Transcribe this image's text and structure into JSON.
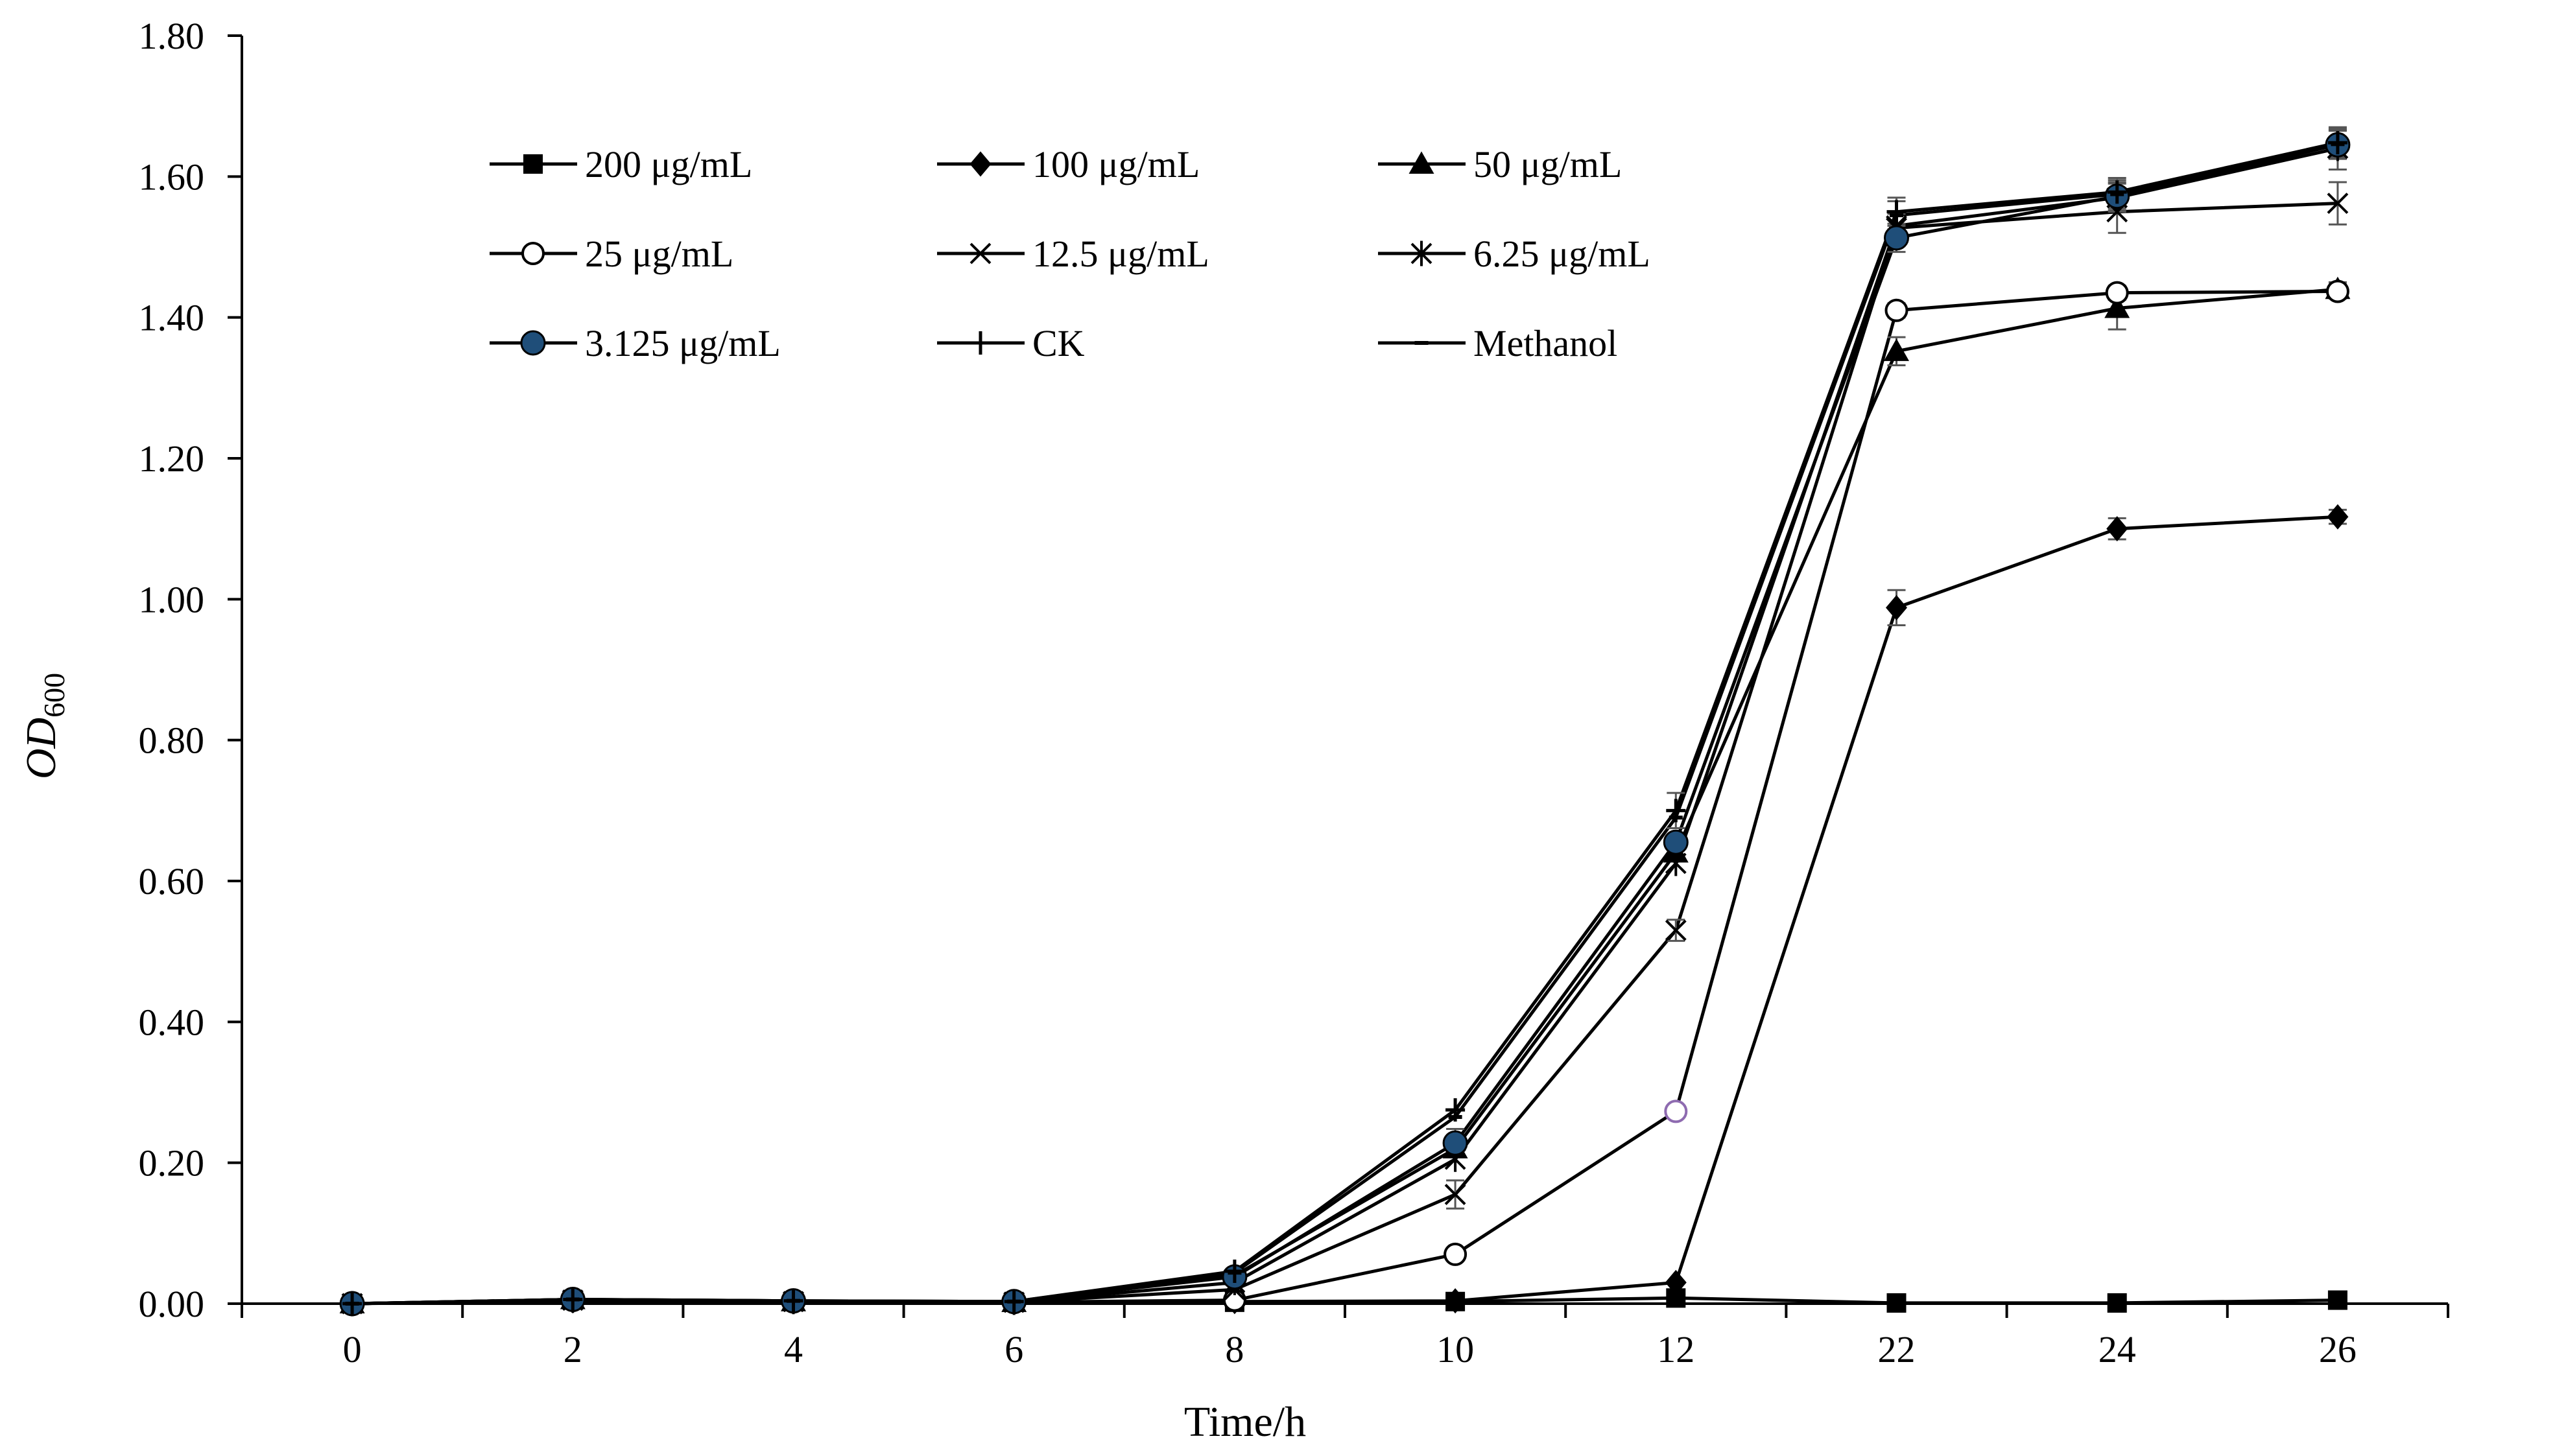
{
  "chart_data": {
    "type": "line",
    "title": "",
    "xlabel": "Time/h",
    "ylabel_main": "OD",
    "ylabel_sub": "600",
    "categories": [
      "0",
      "2",
      "4",
      "6",
      "8",
      "10",
      "12",
      "22",
      "24",
      "26"
    ],
    "ylim": [
      0,
      1.8
    ],
    "yticks": [
      "0.00",
      "0.20",
      "0.40",
      "0.60",
      "0.80",
      "1.00",
      "1.20",
      "1.40",
      "1.60",
      "1.80"
    ],
    "grid": false,
    "legend_position": "top-left",
    "series": [
      {
        "name": "200 μg/mL",
        "marker": "square",
        "values": [
          0.0,
          0.005,
          0.003,
          0.002,
          0.002,
          0.003,
          0.008,
          0.001,
          0.001,
          0.005
        ],
        "errors": [
          0,
          0,
          0,
          0,
          0,
          0,
          0,
          0,
          0,
          0
        ]
      },
      {
        "name": "100 μg/mL",
        "marker": "diamond",
        "values": [
          0.0,
          0.004,
          0.003,
          0.002,
          0.003,
          0.004,
          0.03,
          0.988,
          1.1,
          1.117
        ],
        "errors": [
          0,
          0,
          0,
          0,
          0,
          0,
          0,
          0.025,
          0.015,
          0.01
        ]
      },
      {
        "name": "50 μg/mL",
        "marker": "triangle",
        "values": [
          0.0,
          0.006,
          0.003,
          0.002,
          0.04,
          0.22,
          0.64,
          1.352,
          1.413,
          1.44
        ],
        "errors": [
          0,
          0,
          0,
          0,
          0,
          0,
          0,
          0.02,
          0.03,
          0.01
        ]
      },
      {
        "name": "25 μg/mL",
        "marker": "circle-open",
        "values": [
          0.0,
          0.005,
          0.003,
          0.002,
          0.005,
          0.07,
          0.273,
          1.41,
          1.435,
          1.437
        ],
        "errors": [
          0,
          0,
          0,
          0,
          0,
          0,
          0,
          0.01,
          0.01,
          0.01
        ]
      },
      {
        "name": "12.5 μg/mL",
        "marker": "x",
        "values": [
          0.0,
          0.005,
          0.003,
          0.002,
          0.02,
          0.155,
          0.53,
          1.527,
          1.55,
          1.562
        ],
        "errors": [
          0,
          0,
          0,
          0,
          0,
          0.02,
          0.015,
          0.02,
          0.03,
          0.03
        ]
      },
      {
        "name": "6.25 μg/mL",
        "marker": "asterisk",
        "values": [
          0.0,
          0.005,
          0.003,
          0.002,
          0.03,
          0.205,
          0.625,
          1.53,
          1.57,
          1.64
        ],
        "errors": [
          0,
          0,
          0,
          0,
          0,
          0,
          0,
          0.02,
          0.02,
          0.03
        ]
      },
      {
        "name": "3.125 μg/mL",
        "marker": "circle-filled",
        "values": [
          0.0,
          0.006,
          0.004,
          0.003,
          0.038,
          0.228,
          0.655,
          1.513,
          1.572,
          1.645
        ],
        "errors": [
          0,
          0,
          0,
          0,
          0,
          0.02,
          0,
          0.02,
          0.02,
          0.02
        ]
      },
      {
        "name": "CK",
        "marker": "plus",
        "values": [
          0.0,
          0.006,
          0.004,
          0.003,
          0.046,
          0.275,
          0.7,
          1.55,
          1.578,
          1.648
        ],
        "errors": [
          0,
          0,
          0,
          0,
          0,
          0,
          0.025,
          0.02,
          0.02,
          0.02
        ]
      },
      {
        "name": "Methanol",
        "marker": "dash",
        "values": [
          0.0,
          0.006,
          0.004,
          0.003,
          0.044,
          0.265,
          0.69,
          1.545,
          1.575,
          1.646
        ],
        "errors": [
          0,
          0,
          0,
          0,
          0,
          0,
          0,
          0.02,
          0.02,
          0.02
        ]
      }
    ],
    "colors": {
      "line": "#000000",
      "filled_circle": "#1f4e79",
      "open_circle_highlight": "#8e6bb0",
      "error_bar": "#555555"
    }
  }
}
